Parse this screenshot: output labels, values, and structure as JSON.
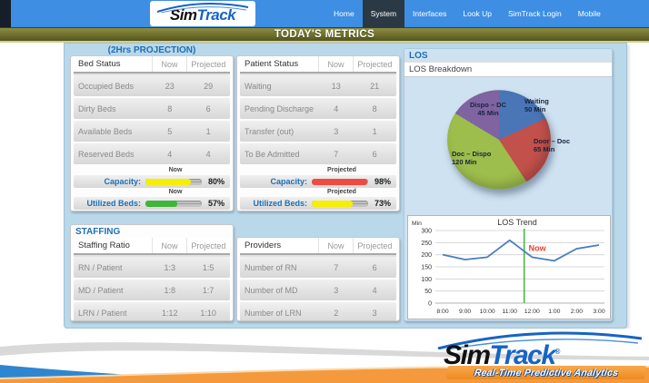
{
  "nav": {
    "brand_sim": "Sim",
    "brand_track": "Track",
    "items": [
      {
        "label": "Home",
        "active": false
      },
      {
        "label": "System",
        "active": true
      },
      {
        "label": "Interfaces",
        "active": false
      },
      {
        "label": "Look Up",
        "active": false
      },
      {
        "label": "SimTrack Login",
        "active": false
      },
      {
        "label": "Mobile",
        "active": false
      }
    ]
  },
  "banner": {
    "title": "TODAY'S METRICS"
  },
  "projection": {
    "title": "(2Hrs PROJECTION)",
    "bed_status": {
      "headers": [
        "Bed Status",
        "Now",
        "Projected"
      ],
      "rows": [
        {
          "label": "Occupied Beds",
          "now": "23",
          "projected": "29"
        },
        {
          "label": "Dirty Beds",
          "now": "8",
          "projected": "6"
        },
        {
          "label": "Available Beds",
          "now": "5",
          "projected": "1"
        },
        {
          "label": "Reserved Beds",
          "now": "4",
          "projected": "4"
        }
      ],
      "gauges": [
        {
          "period": "Now",
          "label": "Capacity:",
          "percent": 80,
          "display": "80%",
          "color": "#f6ee04"
        },
        {
          "period": "Now",
          "label": "Utilized Beds:",
          "percent": 57,
          "display": "57%",
          "color": "#3fb53a"
        }
      ]
    },
    "patient_status": {
      "headers": [
        "Patient Status",
        "Now",
        "Projected"
      ],
      "rows": [
        {
          "label": "Waiting",
          "now": "13",
          "projected": "21"
        },
        {
          "label": "Pending Discharge",
          "now": "4",
          "projected": "8"
        },
        {
          "label": "Transfer (out)",
          "now": "3",
          "projected": "1"
        },
        {
          "label": "To Be Admitted",
          "now": "7",
          "projected": "6"
        }
      ],
      "gauges": [
        {
          "period": "Projected",
          "label": "Capacity:",
          "percent": 98,
          "display": "98%",
          "color": "#f04b40"
        },
        {
          "period": "Projected",
          "label": "Utilized Beds:",
          "percent": 73,
          "display": "73%",
          "color": "#f6ee04"
        }
      ]
    }
  },
  "staffing": {
    "title": "STAFFING",
    "ratio": {
      "headers": [
        "Staffing Ratio",
        "Now",
        "Projected"
      ],
      "rows": [
        {
          "label": "RN / Patient",
          "now": "1:3",
          "projected": "1:5"
        },
        {
          "label": "MD / Patient",
          "now": "1:8",
          "projected": "1:7"
        },
        {
          "label": "LRN / Patient",
          "now": "1:12",
          "projected": "1:10"
        }
      ]
    },
    "providers": {
      "headers": [
        "Providers",
        "Now",
        "Projected"
      ],
      "rows": [
        {
          "label": "Number of RN",
          "now": "7",
          "projected": "6"
        },
        {
          "label": "Number of MD",
          "now": "3",
          "projected": "4"
        },
        {
          "label": "Number of LRN",
          "now": "2",
          "projected": "3"
        }
      ]
    }
  },
  "los": {
    "title": "LOS",
    "breakdown_title": "LOS Breakdown"
  },
  "chart_data": [
    {
      "type": "pie",
      "title": "LOS Breakdown",
      "unit": "Min",
      "start_angle_deg": 0,
      "direction": "clockwise",
      "segments": [
        {
          "label": "Waiting",
          "value": 50,
          "text": "50 Min",
          "color": "#4a76b8"
        },
        {
          "label": "Door – Doc",
          "value": 65,
          "text": "65 Min",
          "color": "#c2504b"
        },
        {
          "label": "Doc – Dispo",
          "value": 120,
          "text": "120 Min",
          "color": "#9dbd4c"
        },
        {
          "label": "Dispo – DC",
          "value": 45,
          "text": "45 Min",
          "color": "#8064a2"
        }
      ]
    },
    {
      "type": "line",
      "title": "LOS Trend",
      "ylabel": "Min",
      "x": [
        "8:00",
        "9:00",
        "10:00",
        "11:00",
        "12:00",
        "1:00",
        "2:00",
        "3:00"
      ],
      "values": [
        200,
        180,
        190,
        260,
        190,
        175,
        225,
        240
      ],
      "ylim": [
        0,
        300
      ],
      "ytick_step": 50,
      "grid": true,
      "line_color": "#4a7ebb",
      "now_marker": {
        "x_index": 3.65,
        "label": "Now",
        "label_color": "#e8432e",
        "line_color": "#4db848"
      }
    }
  ],
  "footer": {
    "brand_sim": "Sim",
    "brand_track": "Track",
    "reg": "®",
    "tagline": "Real-Time Predictive Analytics"
  }
}
